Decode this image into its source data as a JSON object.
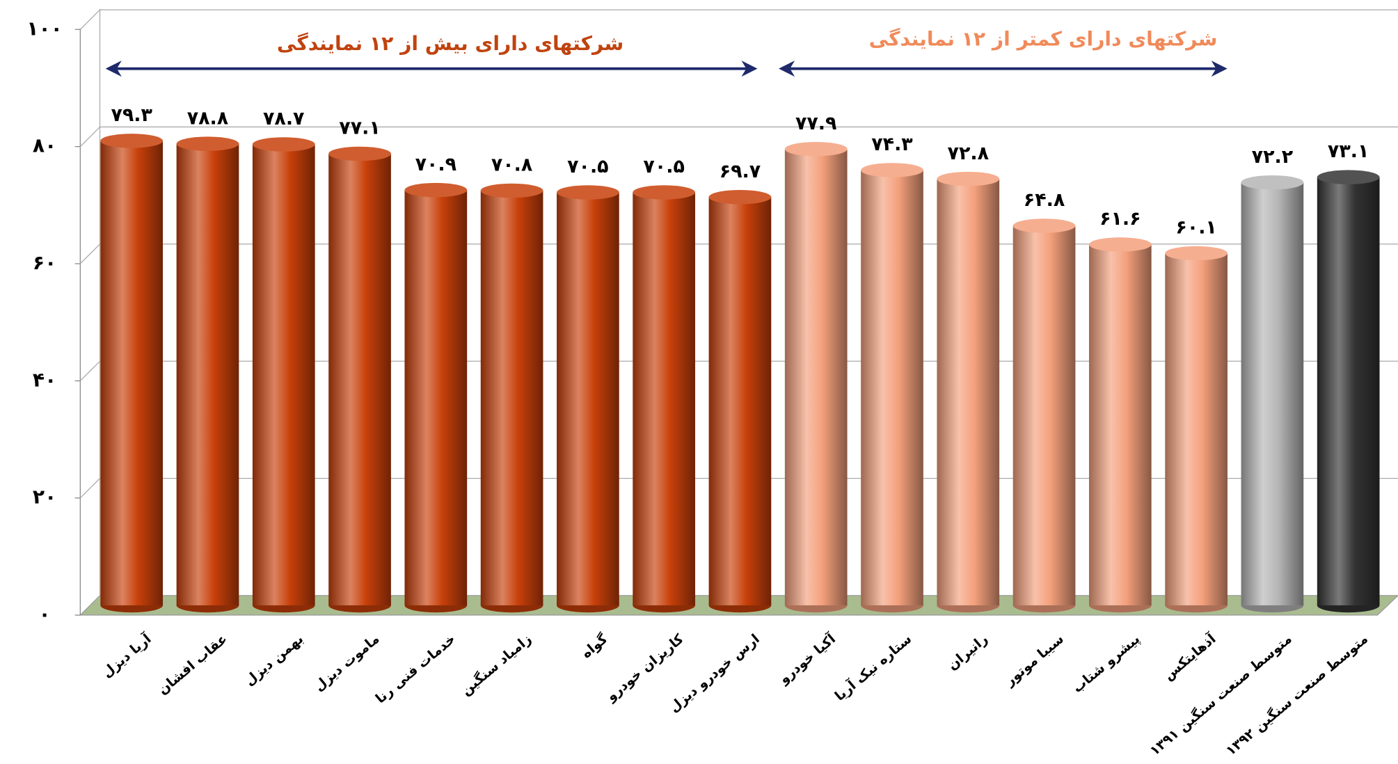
{
  "chart_data": {
    "type": "bar",
    "annotations": [
      "شرکتهای دارای بیش از ۱۲ نمایندگی",
      "شرکتهای دارای کمتر از ۱۲ نمایندگی"
    ],
    "categories": [
      "آریا دیزل",
      "عقاب افشان",
      "بهمن دیزل",
      "ماموت دیزل",
      "خدمات فنی رنا",
      "زامیاد سنگین",
      "گواه",
      "کاریزان خودرو",
      "ارس خودرو دیزل",
      "آکیا خودرو",
      "ستاره نیک آریا",
      "رانیران",
      "سیبا موتور",
      "پیشرو شتاب",
      "آذهایتکس",
      "متوسط صنعت سنگین ۱۳۹۱",
      "متوسط صنعت سنگین ۱۳۹۲"
    ],
    "values": [
      79.3,
      78.8,
      78.7,
      77.1,
      70.9,
      70.8,
      70.5,
      70.5,
      69.7,
      77.9,
      74.3,
      72.8,
      64.8,
      61.6,
      60.1,
      72.2,
      73.1
    ],
    "value_labels": [
      "۷۹.۳",
      "۷۸.۸",
      "۷۸.۷",
      "۷۷.۱",
      "۷۰.۹",
      "۷۰.۸",
      "۷۰.۵",
      "۷۰.۵",
      "۶۹.۷",
      "۷۷.۹",
      "۷۴.۳",
      "۷۲.۸",
      "۶۴.۸",
      "۶۱.۶",
      "۶۰.۱",
      "۷۲.۲",
      "۷۳.۱"
    ],
    "colors": [
      "#c8400a",
      "#c8400a",
      "#c8400a",
      "#c8400a",
      "#c8400a",
      "#c8400a",
      "#c8400a",
      "#c8400a",
      "#c8400a",
      "#f4a07c",
      "#f4a07c",
      "#f4a07c",
      "#f4a07c",
      "#f4a07c",
      "#f4a07c",
      "#b5b5b5",
      "#333333"
    ],
    "ylim": [
      0,
      100
    ],
    "yticks": [
      {
        "value": 0,
        "label": "۰"
      },
      {
        "value": 20,
        "label": "۲۰"
      },
      {
        "value": 40,
        "label": "۴۰"
      },
      {
        "value": 60,
        "label": "۶۰"
      },
      {
        "value": 80,
        "label": "۸۰"
      },
      {
        "value": 100,
        "label": "۱۰۰"
      }
    ],
    "grid": true
  }
}
